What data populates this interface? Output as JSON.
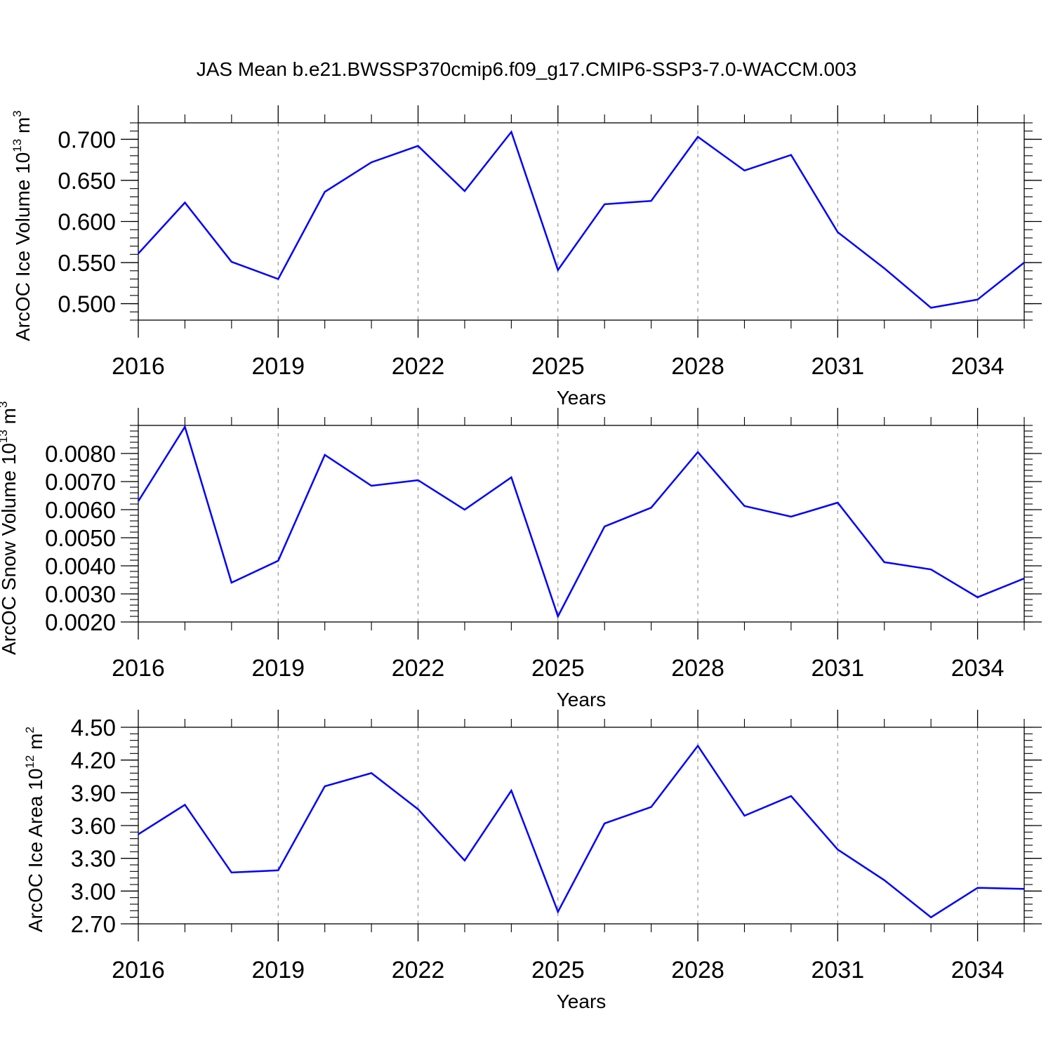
{
  "figure": {
    "title": "JAS Mean b.e21.BWSSP370cmip6.f09_g17.CMIP6-SSP3-7.0-WACCM.003"
  },
  "colors": {
    "line": "#0000ff",
    "frame": "#000000",
    "grid": "#808080"
  },
  "chart_data": [
    {
      "type": "line",
      "title": "",
      "xlabel": "Years",
      "ylabel_prefix": "ArcOC Ice Volume 10",
      "ylabel_exp": "13",
      "ylabel_unit": " m",
      "ylabel_unit_exp": "3",
      "xlim": [
        2016,
        2035
      ],
      "ylim": [
        0.48,
        0.72
      ],
      "x_ticks": [
        2016,
        2019,
        2022,
        2025,
        2028,
        2031,
        2034
      ],
      "x_minor_ticks": [
        2017,
        2018,
        2020,
        2021,
        2023,
        2024,
        2026,
        2027,
        2029,
        2030,
        2032,
        2033,
        2035
      ],
      "y_ticks": [
        0.5,
        0.55,
        0.6,
        0.65,
        0.7
      ],
      "y_tick_labels": [
        "0.500",
        "0.550",
        "0.600",
        "0.650",
        "0.700"
      ],
      "y_minor_step": 0.01,
      "grid": "vertical dashed at major x ticks",
      "x": [
        2016,
        2017,
        2018,
        2019,
        2020,
        2021,
        2022,
        2023,
        2024,
        2025,
        2026,
        2027,
        2028,
        2029,
        2030,
        2031,
        2032,
        2033,
        2034,
        2035
      ],
      "series": [
        {
          "values": [
            0.561,
            0.623,
            0.551,
            0.53,
            0.636,
            0.672,
            0.692,
            0.637,
            0.709,
            0.541,
            0.621,
            0.625,
            0.703,
            0.662,
            0.681,
            0.587,
            0.543,
            0.495,
            0.505,
            0.55
          ]
        }
      ]
    },
    {
      "type": "line",
      "title": "",
      "xlabel": "Years",
      "ylabel_prefix": "ArcOC Snow Volume 10",
      "ylabel_exp": "13",
      "ylabel_unit": " m",
      "ylabel_unit_exp": "3",
      "xlim": [
        2016,
        2035
      ],
      "ylim": [
        0.002,
        0.009
      ],
      "x_ticks": [
        2016,
        2019,
        2022,
        2025,
        2028,
        2031,
        2034
      ],
      "x_minor_ticks": [
        2017,
        2018,
        2020,
        2021,
        2023,
        2024,
        2026,
        2027,
        2029,
        2030,
        2032,
        2033,
        2035
      ],
      "y_ticks": [
        0.002,
        0.003,
        0.004,
        0.005,
        0.006,
        0.007,
        0.008
      ],
      "y_tick_labels": [
        "0.0020",
        "0.0030",
        "0.0040",
        "0.0050",
        "0.0060",
        "0.0070",
        "0.0080"
      ],
      "y_minor_step": 0.0002,
      "grid": "vertical dashed at major x ticks",
      "x": [
        2016,
        2017,
        2018,
        2019,
        2020,
        2021,
        2022,
        2023,
        2024,
        2025,
        2026,
        2027,
        2028,
        2029,
        2030,
        2031,
        2032,
        2033,
        2034,
        2035
      ],
      "series": [
        {
          "values": [
            0.0063,
            0.00895,
            0.0034,
            0.00418,
            0.00795,
            0.00685,
            0.00705,
            0.006,
            0.00715,
            0.0022,
            0.0054,
            0.00607,
            0.00805,
            0.00613,
            0.00575,
            0.00625,
            0.00413,
            0.00387,
            0.00288,
            0.00355
          ]
        }
      ]
    },
    {
      "type": "line",
      "title": "",
      "xlabel": "Years",
      "ylabel_prefix": "ArcOC Ice Area 10",
      "ylabel_exp": "12",
      "ylabel_unit": " m",
      "ylabel_unit_exp": "2",
      "xlim": [
        2016,
        2035
      ],
      "ylim": [
        2.7,
        4.5
      ],
      "x_ticks": [
        2016,
        2019,
        2022,
        2025,
        2028,
        2031,
        2034
      ],
      "x_minor_ticks": [
        2017,
        2018,
        2020,
        2021,
        2023,
        2024,
        2026,
        2027,
        2029,
        2030,
        2032,
        2033,
        2035
      ],
      "y_ticks": [
        2.7,
        3.0,
        3.3,
        3.6,
        3.9,
        4.2,
        4.5
      ],
      "y_tick_labels": [
        "2.70",
        "3.00",
        "3.30",
        "3.60",
        "3.90",
        "4.20",
        "4.50"
      ],
      "y_minor_step": 0.06,
      "grid": "vertical dashed at major x ticks",
      "x": [
        2016,
        2017,
        2018,
        2019,
        2020,
        2021,
        2022,
        2023,
        2024,
        2025,
        2026,
        2027,
        2028,
        2029,
        2030,
        2031,
        2032,
        2033,
        2034,
        2035
      ],
      "series": [
        {
          "values": [
            3.52,
            3.79,
            3.17,
            3.19,
            3.96,
            4.08,
            3.75,
            3.28,
            3.92,
            2.81,
            3.62,
            3.77,
            4.33,
            3.69,
            3.87,
            3.38,
            3.1,
            2.76,
            3.03,
            3.02
          ]
        }
      ]
    }
  ]
}
